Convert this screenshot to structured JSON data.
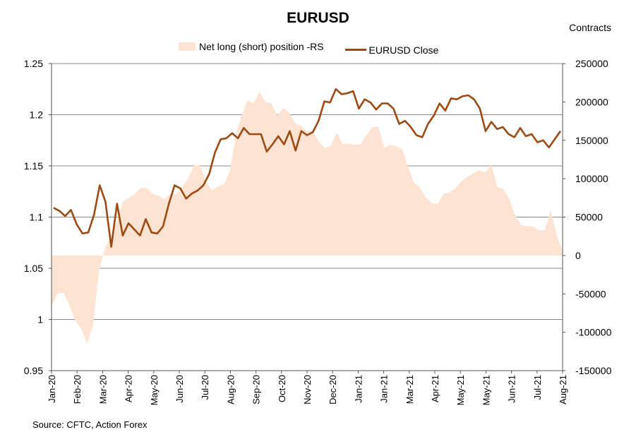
{
  "chart_data": {
    "type": "area+line",
    "title": "EURUSD",
    "units_label": "Contracts",
    "source": "Source: CFTC, Action Forex",
    "legend": [
      {
        "name": "Net long (short) position -RS",
        "color": "#fde3d1",
        "kind": "area"
      },
      {
        "name": "EURUSD Close",
        "color": "#9c4a12",
        "kind": "line"
      }
    ],
    "left_axis": {
      "min": 0.95,
      "max": 1.25,
      "ticks": [
        "1.25",
        "1.2",
        "1.15",
        "1.1",
        "1.05",
        "1",
        "0.95"
      ]
    },
    "right_axis": {
      "min": -150000,
      "max": 250000,
      "ticks": [
        "250000",
        "200000",
        "150000",
        "100000",
        "50000",
        "0",
        "-50000",
        "-100000",
        "-150000"
      ]
    },
    "x_ticks": [
      "Jan-20",
      "Feb-20",
      "Mar-20",
      "Apr-20",
      "May-20",
      "Jun-20",
      "Jul-20",
      "Aug-20",
      "Sep-20",
      "Oct-20",
      "Nov-20",
      "Dec-20",
      "Jan-21",
      "Jan-21",
      "Mar-21",
      "Apr-21",
      "May-21",
      "May-21",
      "Jun-21",
      "Jul-21",
      "Aug-21"
    ],
    "eurusd_close": [
      1.109,
      1.106,
      1.101,
      1.107,
      1.093,
      1.084,
      1.085,
      1.102,
      1.131,
      1.115,
      1.071,
      1.113,
      1.082,
      1.094,
      1.088,
      1.082,
      1.098,
      1.085,
      1.084,
      1.091,
      1.113,
      1.131,
      1.128,
      1.118,
      1.123,
      1.126,
      1.131,
      1.142,
      1.163,
      1.176,
      1.177,
      1.182,
      1.177,
      1.187,
      1.181,
      1.181,
      1.181,
      1.164,
      1.171,
      1.179,
      1.171,
      1.184,
      1.165,
      1.184,
      1.18,
      1.183,
      1.194,
      1.213,
      1.212,
      1.225,
      1.22,
      1.221,
      1.223,
      1.206,
      1.215,
      1.212,
      1.205,
      1.211,
      1.211,
      1.206,
      1.191,
      1.194,
      1.188,
      1.18,
      1.178,
      1.191,
      1.199,
      1.211,
      1.204,
      1.216,
      1.215,
      1.218,
      1.219,
      1.215,
      1.206,
      1.184,
      1.193,
      1.186,
      1.188,
      1.181,
      1.178,
      1.187,
      1.179,
      1.181,
      1.173,
      1.175,
      1.168,
      1.176,
      1.184
    ],
    "net_position": [
      -65000,
      -50000,
      -48000,
      -65000,
      -85000,
      -95000,
      -115000,
      -90000,
      -20000,
      10000,
      25000,
      45000,
      70000,
      75000,
      80000,
      88000,
      88000,
      80000,
      78000,
      73000,
      80000,
      80000,
      90000,
      100000,
      118000,
      118000,
      95000,
      85000,
      90000,
      92000,
      110000,
      155000,
      183000,
      202000,
      198000,
      213000,
      200000,
      198000,
      182000,
      192000,
      186000,
      172000,
      169000,
      162000,
      162000,
      148000,
      140000,
      143000,
      160000,
      145000,
      146000,
      144000,
      145000,
      157000,
      167000,
      168000,
      140000,
      144000,
      142000,
      139000,
      115000,
      95000,
      88000,
      75000,
      68000,
      67000,
      81000,
      82000,
      88000,
      97000,
      102000,
      107000,
      111000,
      108000,
      118000,
      89000,
      87000,
      74000,
      52000,
      40000,
      38000,
      38000,
      33000,
      33000,
      59000,
      27000,
      5000
    ]
  }
}
